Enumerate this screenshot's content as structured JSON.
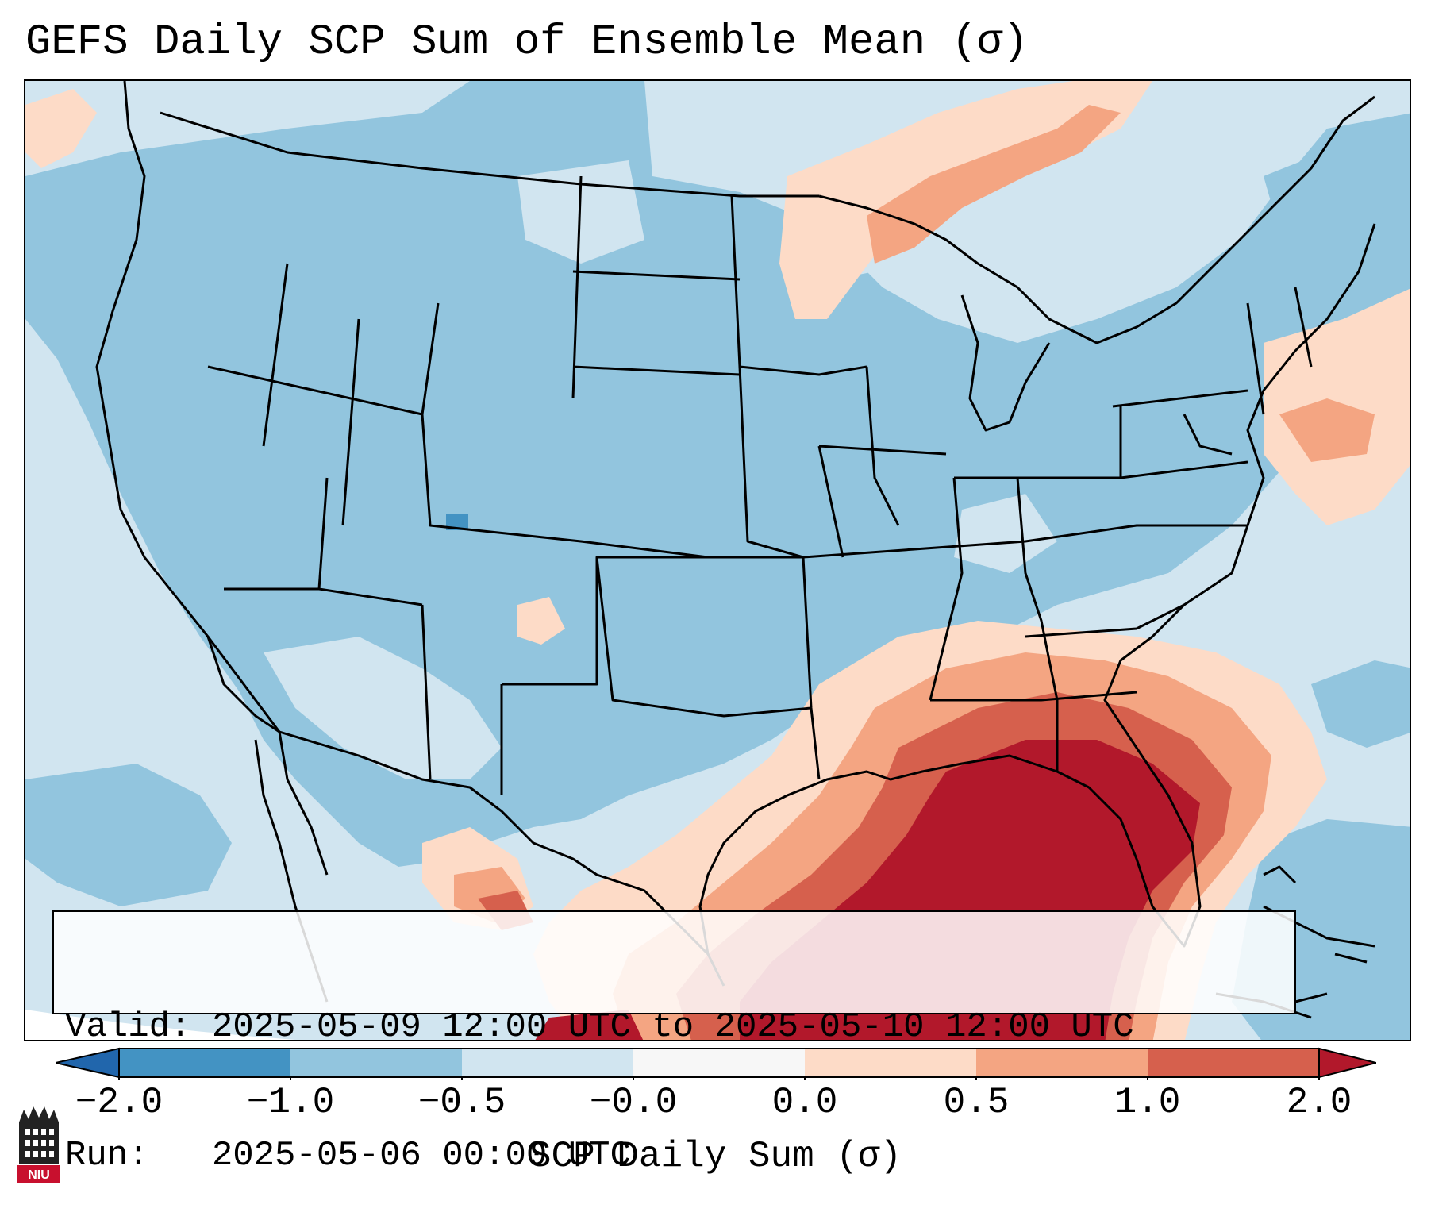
{
  "title": "GEFS Daily SCP Sum of Ensemble Mean (σ)",
  "info_box": {
    "valid_line": "Valid: 2025-05-09 12:00 UTC to 2025-05-10 12:00 UTC",
    "run_line": "Run:   2025-05-06 00:00 UTC"
  },
  "colorbar": {
    "label": "SCP Daily Sum (σ)",
    "ticks": [
      "−2.0",
      "−1.0",
      "−0.5",
      "−0.0",
      "0.0",
      "0.5",
      "1.0",
      "2.0"
    ],
    "bin_colors": [
      "#4393c3",
      "#92c5de",
      "#d1e5f0",
      "#f7f7f7",
      "#fddbc7",
      "#f4a582",
      "#d6604d",
      "#b2182b"
    ],
    "extend_low_color": "#2166ac",
    "extend_high_color": "#b2182b"
  },
  "logo": {
    "text": "NIU",
    "icon": "university-tower-icon",
    "color": "#c8102e"
  }
}
